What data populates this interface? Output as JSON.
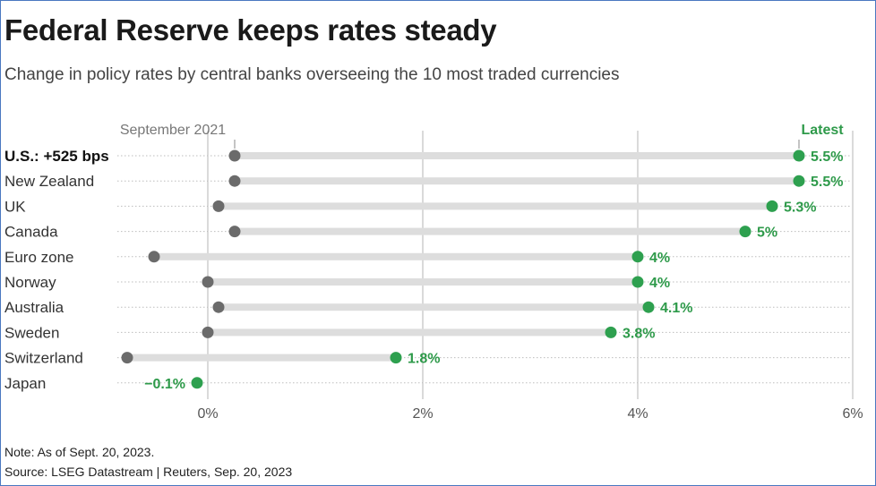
{
  "title": "Federal Reserve keeps rates steady",
  "subtitle": "Change in policy rates by central banks overseeing the 10 most traded currencies",
  "note": "Note: As of Sept. 20, 2023.",
  "source": "Source: LSEG Datastream | Reuters, Sep. 20, 2023",
  "colors": {
    "start_dot": "#6b6b6b",
    "latest_dot": "#2ea04f",
    "latest_label": "#2e9a4a",
    "range_bar": "#dddddd",
    "grid": "#b5b5b5",
    "row_rule": "#bdbdbd",
    "text": "#333333"
  },
  "chart_data": {
    "type": "dot-range",
    "start_series_name": "September 2021",
    "end_series_name": "Latest",
    "xlim": [
      -0.9,
      6.1
    ],
    "ticks": [
      {
        "value": 0,
        "label": "0%"
      },
      {
        "value": 2,
        "label": "2%"
      },
      {
        "value": 4,
        "label": "4%"
      },
      {
        "value": 6,
        "label": "6%"
      }
    ],
    "rows": [
      {
        "country": "U.S.: +525 bps",
        "start": 0.25,
        "latest": 5.5,
        "latest_label": "5.5%",
        "bold": true
      },
      {
        "country": "New Zealand",
        "start": 0.25,
        "latest": 5.5,
        "latest_label": "5.5%"
      },
      {
        "country": "UK",
        "start": 0.1,
        "latest": 5.25,
        "latest_label": "5.3%"
      },
      {
        "country": "Canada",
        "start": 0.25,
        "latest": 5.0,
        "latest_label": "5%"
      },
      {
        "country": "Euro zone",
        "start": -0.5,
        "latest": 4.0,
        "latest_label": "4%"
      },
      {
        "country": "Norway",
        "start": 0.0,
        "latest": 4.0,
        "latest_label": "4%"
      },
      {
        "country": "Australia",
        "start": 0.1,
        "latest": 4.1,
        "latest_label": "4.1%"
      },
      {
        "country": "Sweden",
        "start": 0.0,
        "latest": 3.75,
        "latest_label": "3.8%"
      },
      {
        "country": "Switzerland",
        "start": -0.75,
        "latest": 1.75,
        "latest_label": "1.8%"
      },
      {
        "country": "Japan",
        "start": -0.1,
        "latest": -0.1,
        "latest_label": "−0.1%",
        "label_left": true
      }
    ]
  }
}
